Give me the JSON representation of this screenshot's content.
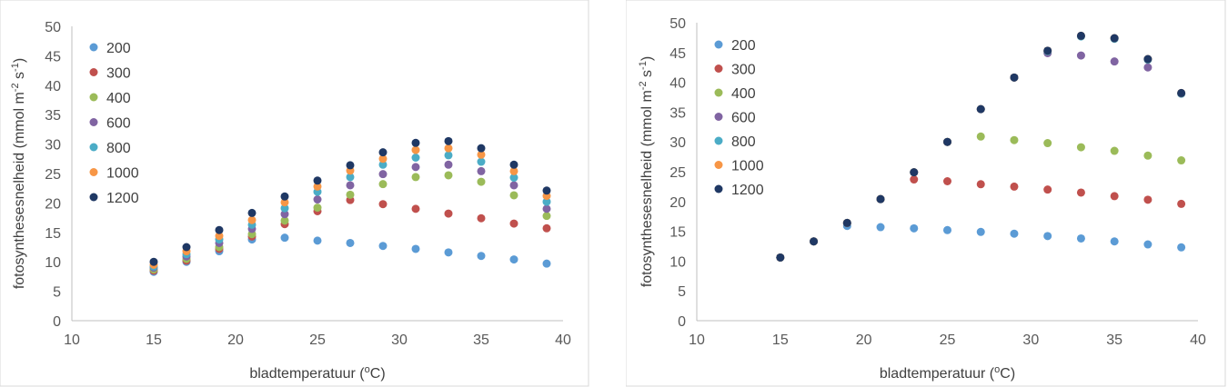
{
  "chart_data": [
    {
      "type": "scatter",
      "xlabel": "bladtemperatuur (",
      "xlabel_sup": "o",
      "xlabel_end": "C)",
      "ylabel_pre": "fotosynthesesnelheid  (mmol m",
      "ylabel_sup1": "-2",
      "ylabel_mid": " s",
      "ylabel_sup2": "-1",
      "ylabel_end": ")",
      "xlim": [
        10,
        40
      ],
      "ylim": [
        0,
        50
      ],
      "xticks": [
        "10",
        "15",
        "20",
        "25",
        "30",
        "35",
        "40"
      ],
      "yticks": [
        "0",
        "5",
        "10",
        "15",
        "20",
        "25",
        "30",
        "35",
        "40",
        "45",
        "50"
      ],
      "grid": false,
      "legend": "top-left",
      "x": [
        15,
        17,
        19,
        21,
        23,
        25,
        27,
        29,
        31,
        33,
        35,
        37,
        39
      ],
      "series": [
        {
          "name": "200",
          "color": "#5B9BD5",
          "values": [
            8.3,
            10.0,
            11.8,
            13.8,
            14.1,
            13.6,
            13.2,
            12.7,
            12.2,
            11.6,
            11.0,
            10.4,
            9.7
          ]
        },
        {
          "name": "300",
          "color": "#C0504D",
          "values": [
            8.5,
            10.2,
            12.2,
            14.3,
            16.4,
            18.6,
            20.5,
            19.8,
            19.0,
            18.2,
            17.4,
            16.5,
            15.7
          ]
        },
        {
          "name": "400",
          "color": "#9BBB59",
          "values": [
            8.7,
            10.5,
            12.5,
            14.7,
            17.0,
            19.2,
            21.4,
            23.2,
            24.4,
            24.7,
            23.6,
            21.3,
            17.8
          ]
        },
        {
          "name": "600",
          "color": "#8064A2",
          "values": [
            9.0,
            10.9,
            13.2,
            15.6,
            18.1,
            20.6,
            23.0,
            24.9,
            26.1,
            26.5,
            25.4,
            23.0,
            19.0
          ]
        },
        {
          "name": "800",
          "color": "#4BACC6",
          "values": [
            9.2,
            11.3,
            13.8,
            16.3,
            19.1,
            21.9,
            24.4,
            26.5,
            27.7,
            28.1,
            27.0,
            24.3,
            20.2
          ]
        },
        {
          "name": "1000",
          "color": "#F79646",
          "values": [
            9.5,
            11.8,
            14.4,
            17.1,
            20.1,
            22.8,
            25.5,
            27.5,
            29.0,
            29.3,
            28.2,
            25.4,
            21.2
          ]
        },
        {
          "name": "1200",
          "color": "#1F3864",
          "values": [
            10.0,
            12.5,
            15.4,
            18.3,
            21.1,
            23.8,
            26.4,
            28.6,
            30.2,
            30.5,
            29.3,
            26.5,
            22.1
          ]
        }
      ]
    },
    {
      "type": "scatter",
      "xlabel": "bladtemperatuur (",
      "xlabel_sup": "o",
      "xlabel_end": "C)",
      "ylabel_pre": "fotosynthesesnelheid  (mmol m",
      "ylabel_sup1": "-2",
      "ylabel_mid": " s",
      "ylabel_sup2": "-1",
      "ylabel_end": ")",
      "xlim": [
        10,
        40
      ],
      "ylim": [
        0,
        50
      ],
      "xticks": [
        "10",
        "15",
        "20",
        "25",
        "30",
        "35",
        "40"
      ],
      "yticks": [
        "0",
        "5",
        "10",
        "15",
        "20",
        "25",
        "30",
        "35",
        "40",
        "45",
        "50"
      ],
      "grid": false,
      "legend": "top-left",
      "x": [
        15,
        17,
        19,
        21,
        23,
        25,
        27,
        29,
        31,
        33,
        35,
        37,
        39
      ],
      "series": [
        {
          "name": "200",
          "color": "#5B9BD5",
          "values": [
            10.6,
            13.3,
            15.9,
            15.7,
            15.5,
            15.2,
            14.9,
            14.6,
            14.2,
            13.8,
            13.3,
            12.8,
            12.3
          ]
        },
        {
          "name": "300",
          "color": "#C0504D",
          "values": [
            10.6,
            13.3,
            16.4,
            20.4,
            23.7,
            23.4,
            22.9,
            22.5,
            22.0,
            21.5,
            20.9,
            20.3,
            19.6
          ]
        },
        {
          "name": "400",
          "color": "#9BBB59",
          "values": [
            10.6,
            13.3,
            16.4,
            20.4,
            24.9,
            30.0,
            30.9,
            30.3,
            29.8,
            29.1,
            28.5,
            27.7,
            26.9
          ]
        },
        {
          "name": "600",
          "color": "#8064A2",
          "values": [
            10.6,
            13.3,
            16.4,
            20.4,
            24.9,
            30.0,
            35.5,
            40.8,
            44.9,
            44.5,
            43.5,
            42.5,
            38.1
          ]
        },
        {
          "name": "800",
          "color": "#4BACC6",
          "values": [
            10.6,
            13.3,
            16.4,
            20.4,
            24.9,
            30.0,
            35.5,
            40.8,
            45.2,
            47.7,
            47.3,
            43.8,
            38.1
          ]
        },
        {
          "name": "1000",
          "color": "#F79646",
          "values": [
            10.6,
            13.3,
            16.4,
            20.4,
            24.9,
            30.0,
            35.5,
            40.8,
            45.3,
            47.8,
            47.4,
            43.9,
            38.2
          ]
        },
        {
          "name": "1200",
          "color": "#1F3864",
          "values": [
            10.6,
            13.3,
            16.4,
            20.4,
            24.9,
            30.0,
            35.5,
            40.8,
            45.3,
            47.8,
            47.4,
            43.9,
            38.2
          ]
        }
      ]
    }
  ]
}
